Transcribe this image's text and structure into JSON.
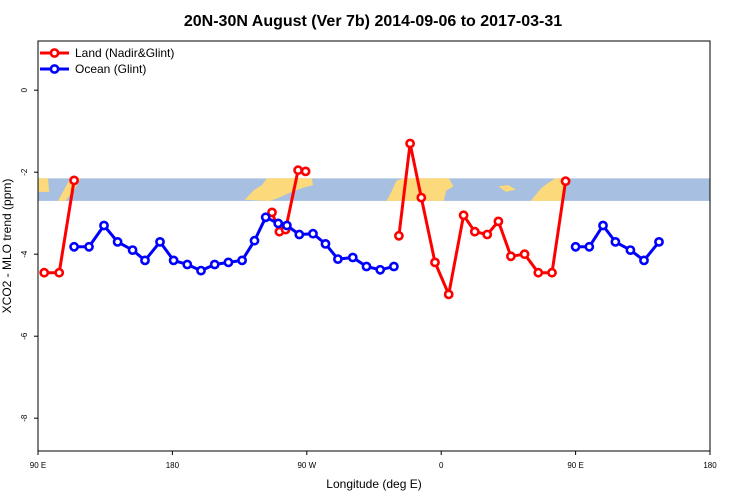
{
  "chart_data": {
    "type": "line",
    "title": "20N-30N August (Ver 7b)   2014-09-06 to 2017-03-31",
    "xlabel": "Longitude (deg E)",
    "ylabel": "XCO2 - MLO trend (ppm)",
    "xlim": [
      -90,
      180
    ],
    "ylim": [
      -8.8,
      1.2
    ],
    "x_ticks": [
      {
        "value": -90,
        "label": "90 E"
      },
      {
        "value": -36,
        "label": "180"
      },
      {
        "value": 18,
        "label": "90 W"
      },
      {
        "value": 72,
        "label": "0"
      },
      {
        "value": 126,
        "label": "90 E"
      },
      {
        "value": 180,
        "label": "180"
      }
    ],
    "y_ticks": [
      {
        "value": 0,
        "label": "0"
      },
      {
        "value": -2,
        "label": "-2"
      },
      {
        "value": -4,
        "label": "-4"
      },
      {
        "value": -6,
        "label": "-6"
      },
      {
        "value": -8,
        "label": "-8"
      }
    ],
    "legend_position": "top-left",
    "map_strip": {
      "y_top": -2.15,
      "y_bottom": -2.7,
      "ocean_color": "#a7bfe0",
      "land_color": "#fcd97a"
    },
    "series": [
      {
        "name": "Land (Nadir&Glint)",
        "color": "#ff0000",
        "segments": [
          [
            [
              -87.5,
              -4.45
            ],
            [
              -81.5,
              -4.45
            ],
            [
              -75.5,
              -2.2
            ]
          ],
          [
            [
              4.0,
              -2.98
            ],
            [
              7.0,
              -3.45
            ],
            [
              9.5,
              -3.4
            ],
            [
              14.5,
              -1.95
            ],
            [
              17.5,
              -1.98
            ]
          ],
          [
            [
              55.0,
              -3.55
            ],
            [
              59.5,
              -1.3
            ],
            [
              64.0,
              -2.62
            ],
            [
              69.5,
              -4.2
            ],
            [
              75.0,
              -4.98
            ],
            [
              81.0,
              -3.05
            ],
            [
              85.5,
              -3.45
            ],
            [
              90.5,
              -3.52
            ],
            [
              95.0,
              -3.2
            ],
            [
              100.0,
              -4.05
            ],
            [
              105.5,
              -4.0
            ],
            [
              111.0,
              -4.45
            ],
            [
              116.5,
              -4.45
            ],
            [
              122.0,
              -2.22
            ]
          ]
        ]
      },
      {
        "name": "Ocean (Glint)",
        "color": "#0000ff",
        "segments": [
          [
            [
              -75.5,
              -3.82
            ],
            [
              -69.5,
              -3.82
            ],
            [
              -63.5,
              -3.3
            ],
            [
              -58.0,
              -3.7
            ],
            [
              -52.0,
              -3.9
            ],
            [
              -47.0,
              -4.15
            ],
            [
              -41.0,
              -3.7
            ],
            [
              -35.5,
              -4.15
            ],
            [
              -30.0,
              -4.25
            ],
            [
              -24.5,
              -4.4
            ],
            [
              -19.0,
              -4.25
            ],
            [
              -13.5,
              -4.2
            ],
            [
              -8.0,
              -4.15
            ],
            [
              -3.0,
              -3.67
            ],
            [
              1.5,
              -3.1
            ],
            [
              6.5,
              -3.25
            ],
            [
              10.0,
              -3.3
            ],
            [
              15.0,
              -3.52
            ],
            [
              20.5,
              -3.5
            ],
            [
              25.5,
              -3.75
            ],
            [
              30.5,
              -4.12
            ],
            [
              36.5,
              -4.08
            ],
            [
              42.0,
              -4.3
            ],
            [
              47.5,
              -4.38
            ],
            [
              53.0,
              -4.3
            ]
          ],
          [
            [
              126.0,
              -3.82
            ],
            [
              131.5,
              -3.82
            ],
            [
              137.0,
              -3.3
            ],
            [
              142.0,
              -3.7
            ],
            [
              148.0,
              -3.9
            ],
            [
              153.5,
              -4.15
            ],
            [
              159.5,
              -3.7
            ]
          ]
        ]
      }
    ]
  }
}
